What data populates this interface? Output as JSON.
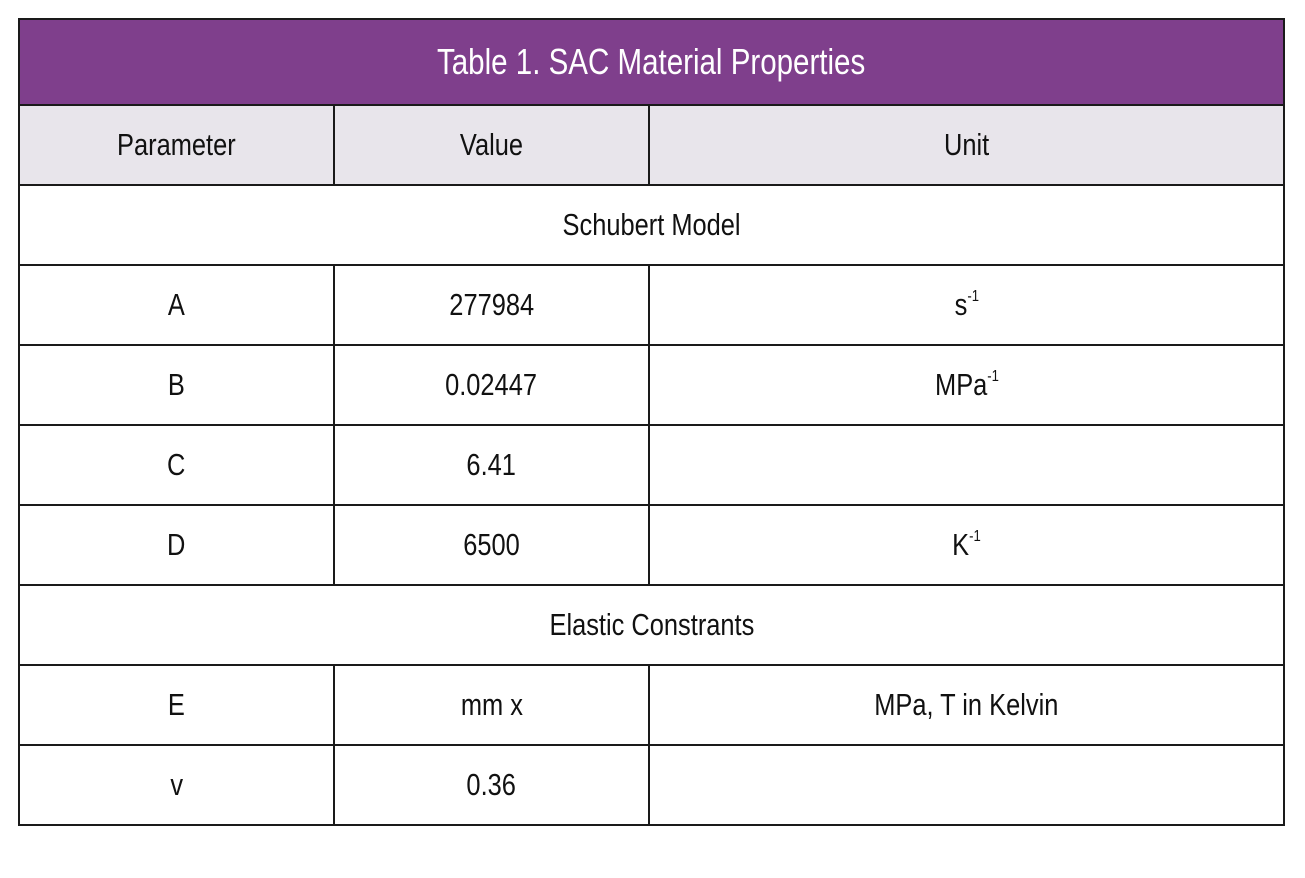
{
  "table": {
    "title": "Table 1. SAC Material Properties",
    "headers": [
      "Parameter",
      "Value",
      "Unit"
    ],
    "colors": {
      "title_bg": "#7f3f8c",
      "title_text": "#ffffff",
      "header_bg": "#e8e5eb",
      "border": "#1a1a1a"
    },
    "sections": [
      {
        "label": "Schubert Model",
        "rows": [
          {
            "parameter": "A",
            "value": "277984",
            "unit_base": "s",
            "unit_sup": "-1"
          },
          {
            "parameter": "B",
            "value": "0.02447",
            "unit_base": "MPa",
            "unit_sup": "-1"
          },
          {
            "parameter": "C",
            "value": "6.41",
            "unit_base": "",
            "unit_sup": ""
          },
          {
            "parameter": "D",
            "value": "6500",
            "unit_base": "K",
            "unit_sup": "-1"
          }
        ]
      },
      {
        "label": "Elastic Constrants",
        "rows": [
          {
            "parameter": "E",
            "value": "mm x",
            "unit_base": "MPa, T in Kelvin",
            "unit_sup": ""
          },
          {
            "parameter": "v",
            "value": "0.36",
            "unit_base": "",
            "unit_sup": ""
          }
        ]
      }
    ]
  }
}
